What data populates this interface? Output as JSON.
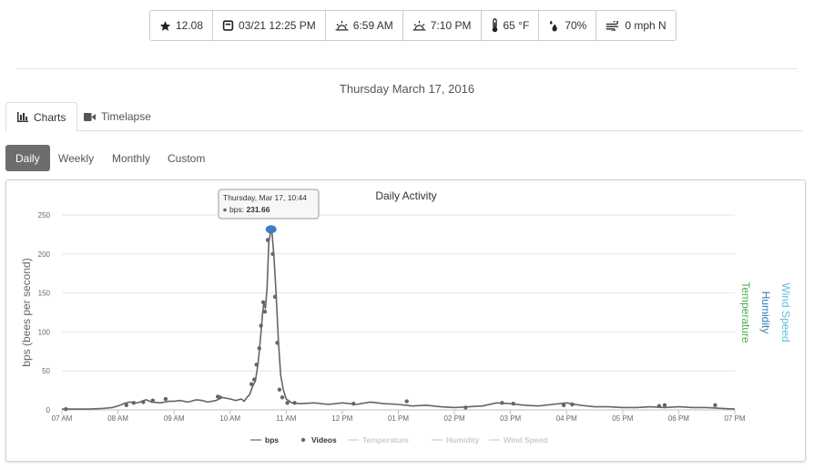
{
  "stats": [
    {
      "icon": "star-icon",
      "text": "12.08"
    },
    {
      "icon": "calendar-icon",
      "text": "03/21 12:25 PM"
    },
    {
      "icon": "sunrise-icon",
      "text": "6:59 AM"
    },
    {
      "icon": "sunset-icon",
      "text": "7:10 PM"
    },
    {
      "icon": "thermometer-icon",
      "text": "65 °F"
    },
    {
      "icon": "humidity-icon",
      "text": "70%"
    },
    {
      "icon": "wind-icon",
      "text": "0 mph N"
    }
  ],
  "page_date": "Thursday March 17, 2016",
  "tabs": [
    {
      "label": "Charts",
      "icon": "bar-chart-icon",
      "active": true
    },
    {
      "label": "Timelapse",
      "icon": "video-camera-icon",
      "active": false
    }
  ],
  "periods": [
    {
      "label": "Daily",
      "active": true
    },
    {
      "label": "Weekly",
      "active": false
    },
    {
      "label": "Monthly",
      "active": false
    },
    {
      "label": "Custom",
      "active": false
    }
  ],
  "tooltip": {
    "title": "Thursday, Mar 17, 10:44",
    "series": "bps",
    "value": "231.66"
  },
  "colors": {
    "bps": "#666666",
    "temperature": "#4caf50",
    "humidity": "#3a7fb5",
    "wind_speed": "#5bc0de",
    "tooltip_marker": "#3d7fc4",
    "active_pill": "#6d6d6d"
  },
  "chart_data": {
    "type": "line",
    "title": "Daily Activity",
    "ylabel": "bps (bees per second)",
    "right_axis_labels": [
      "Temperature",
      "Humidity",
      "Wind Speed"
    ],
    "ylim": [
      0,
      250
    ],
    "yticks": [
      0,
      50,
      100,
      150,
      200,
      250
    ],
    "xticks": [
      "07 AM",
      "08 AM",
      "09 AM",
      "10 AM",
      "11 AM",
      "12 PM",
      "01 PM",
      "02 PM",
      "03 PM",
      "04 PM",
      "05 PM",
      "06 PM",
      "07 PM"
    ],
    "grid": true,
    "legend": {
      "position": "bottom-center",
      "items": [
        "bps",
        "Videos",
        "Temperature",
        "Humidity",
        "Wind Speed"
      ],
      "hidden": [
        "Temperature",
        "Humidity",
        "Wind Speed"
      ]
    },
    "series": [
      {
        "name": "bps",
        "x": [
          7.0,
          7.25,
          7.5,
          7.75,
          7.9,
          8.0,
          8.1,
          8.2,
          8.35,
          8.5,
          8.6,
          8.75,
          8.9,
          9.0,
          9.1,
          9.25,
          9.4,
          9.5,
          9.6,
          9.75,
          9.85,
          10.0,
          10.1,
          10.2,
          10.25,
          10.3,
          10.35,
          10.4,
          10.45,
          10.5,
          10.53,
          10.56,
          10.58,
          10.6,
          10.63,
          10.66,
          10.69,
          10.73,
          10.75,
          10.78,
          10.82,
          10.86,
          10.9,
          10.95,
          11.0,
          11.1,
          11.25,
          11.5,
          11.75,
          12.0,
          12.25,
          12.5,
          12.75,
          13.0,
          13.25,
          13.5,
          13.75,
          14.0,
          14.25,
          14.5,
          14.75,
          15.0,
          15.25,
          15.5,
          15.75,
          16.0,
          16.25,
          16.5,
          16.75,
          17.0,
          17.25,
          17.5,
          17.75,
          18.0,
          18.25,
          18.5,
          18.75,
          19.0
        ],
        "values": [
          1,
          1,
          1,
          2,
          3,
          5,
          8,
          10,
          9,
          13,
          10,
          9,
          11,
          11,
          12,
          10,
          13,
          12,
          10,
          12,
          16,
          14,
          12,
          14,
          11,
          16,
          20,
          30,
          37,
          60,
          83,
          107,
          125,
          137,
          130,
          158,
          215,
          231.66,
          225,
          198,
          150,
          90,
          45,
          25,
          14,
          9,
          8,
          9,
          7,
          9,
          7,
          10,
          8,
          7,
          5,
          6,
          4,
          3,
          4,
          5,
          9,
          8,
          6,
          5,
          7,
          9,
          6,
          4,
          4,
          3,
          3,
          4,
          3,
          4,
          3,
          3,
          2,
          1
        ]
      },
      {
        "name": "Videos",
        "x": [
          7.07,
          8.15,
          8.28,
          8.45,
          8.62,
          8.85,
          9.78,
          9.82,
          10.38,
          10.43,
          10.47,
          10.52,
          10.55,
          10.59,
          10.62,
          10.67,
          10.7,
          10.76,
          10.8,
          10.84,
          10.88,
          10.93,
          11.02,
          11.15,
          12.2,
          13.15,
          14.2,
          14.85,
          15.05,
          15.95,
          16.1,
          17.65,
          17.75,
          18.65
        ],
        "values": [
          1,
          6,
          9,
          10,
          12,
          14,
          17,
          16,
          33,
          39,
          58,
          79,
          108,
          138,
          126,
          218,
          229,
          200,
          145,
          86,
          26,
          16,
          9,
          9,
          8,
          11,
          3,
          9,
          8,
          6,
          7,
          5,
          6,
          6
        ]
      }
    ]
  }
}
